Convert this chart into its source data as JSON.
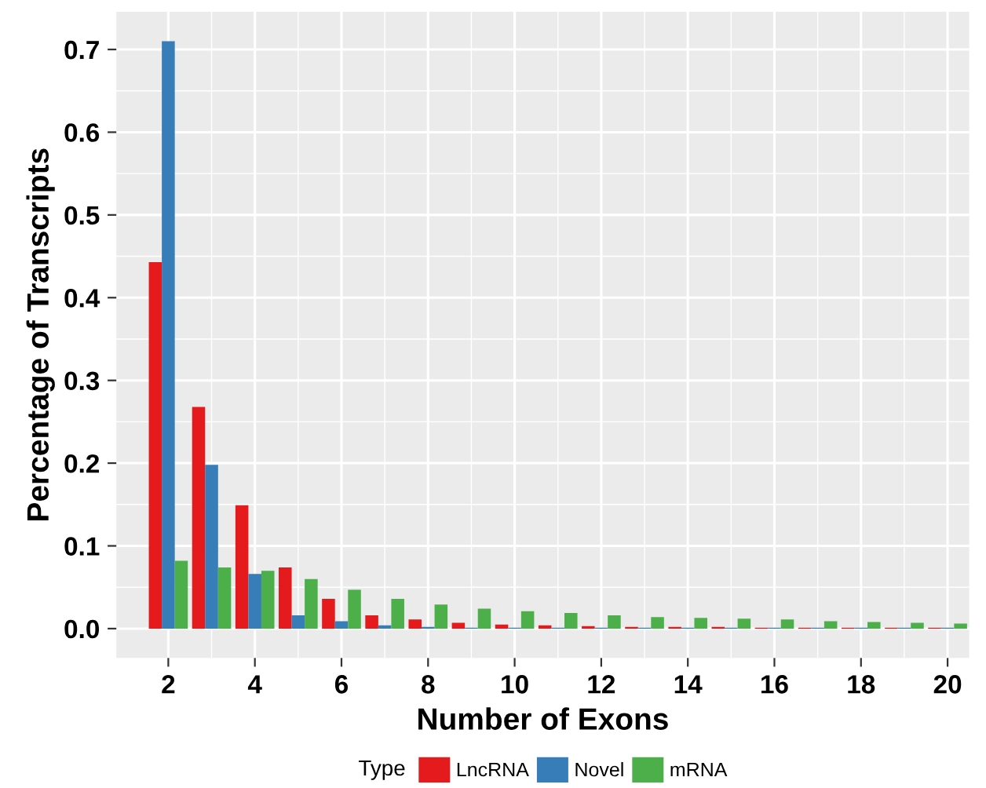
{
  "chart_data": {
    "type": "bar",
    "xlabel": "Number of Exons",
    "ylabel": "Percentage of Transcripts",
    "legend_title": "Type",
    "legend": "bottom",
    "grid": true,
    "x": [
      2,
      3,
      4,
      5,
      6,
      7,
      8,
      9,
      10,
      11,
      12,
      13,
      14,
      15,
      16,
      17,
      18,
      19,
      20
    ],
    "xlim": [
      0.8,
      20.5
    ],
    "xticks": [
      2,
      4,
      6,
      8,
      10,
      12,
      14,
      16,
      18,
      20
    ],
    "ylim": [
      -0.0355,
      0.7455
    ],
    "yticks": [
      {
        "value": 0,
        "label": "0.0"
      },
      0.1,
      0.2,
      0.3,
      0.4,
      0.5,
      0.6,
      0.7
    ],
    "series": [
      {
        "name": "LncRNA",
        "color": "#e41a1c",
        "values": [
          0.443,
          0.268,
          0.149,
          0.074,
          0.036,
          0.016,
          0.011,
          0.007,
          0.005,
          0.004,
          0.003,
          0.002,
          0.002,
          0.002,
          0.001,
          0.001,
          0.001,
          0.001,
          0.001
        ]
      },
      {
        "name": "Novel",
        "color": "#377eb8",
        "values": [
          0.71,
          0.198,
          0.066,
          0.016,
          0.009,
          0.004,
          0.002,
          0.001,
          0.001,
          0.001,
          0.001,
          0.001,
          0.001,
          0.001,
          0.001,
          0.001,
          0.001,
          0.001,
          0.001
        ]
      },
      {
        "name": "mRNA",
        "color": "#4daf4a",
        "values": [
          0.082,
          0.074,
          0.07,
          0.06,
          0.047,
          0.036,
          0.029,
          0.024,
          0.021,
          0.019,
          0.016,
          0.014,
          0.013,
          0.012,
          0.011,
          0.009,
          0.008,
          0.007,
          0.006
        ]
      }
    ]
  }
}
